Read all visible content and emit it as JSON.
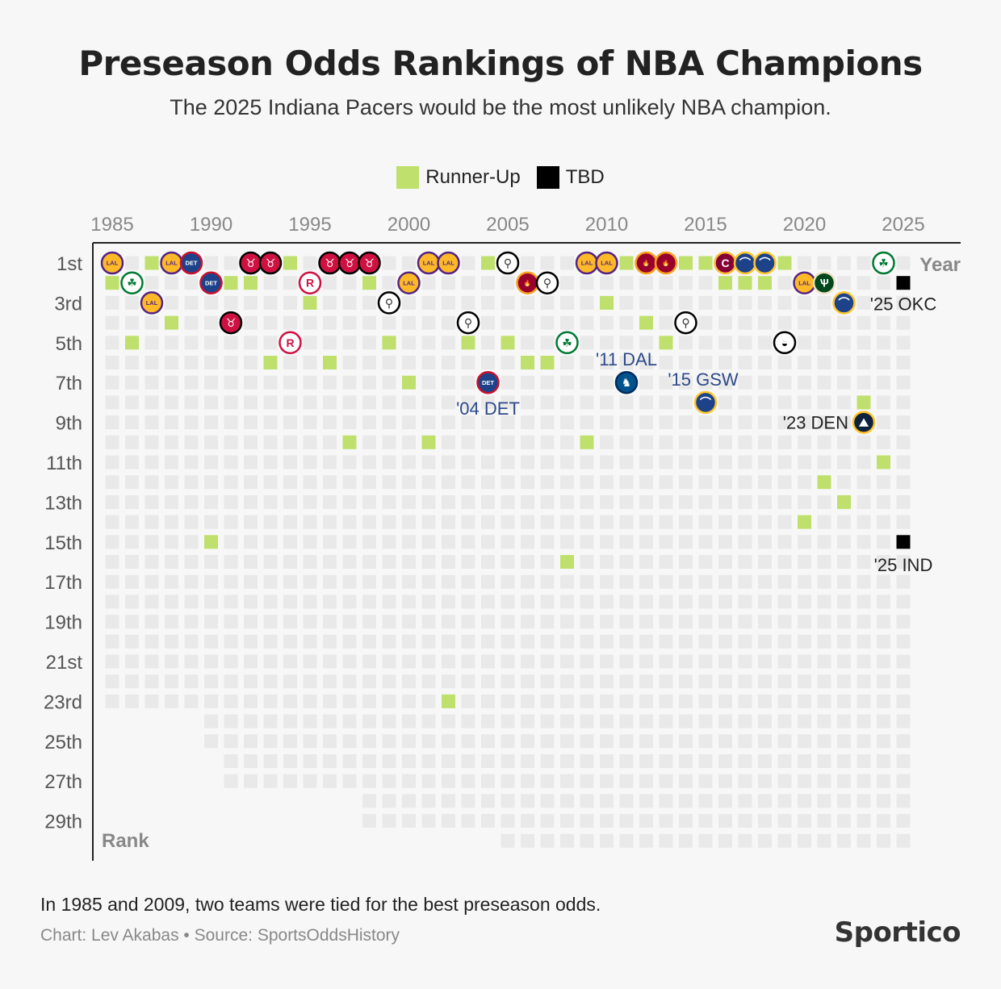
{
  "title": "Preseason Odds Rankings of NBA Champions",
  "subtitle": "The 2025 Indiana Pacers would be the most unlikely NBA champion.",
  "legend": {
    "runner_up": "Runner-Up",
    "tbd": "TBD"
  },
  "footnote": "In 1985 and 2009, two teams were tied for the best preseason odds.",
  "credit": "Chart: Lev Akabas • Source: SportsOddsHistory",
  "brand": "Sportico",
  "colors": {
    "runner_up": "#bfe06c",
    "tbd": "#000000",
    "empty_cell": "#e9e9e9",
    "annotation": "#2e4a8a"
  },
  "chart_data": {
    "type": "scatter",
    "xlabel": "Year",
    "ylabel": "Rank",
    "x_ticks": [
      1985,
      1990,
      1995,
      2000,
      2005,
      2010,
      2015,
      2020,
      2025
    ],
    "y_ticks": [
      "1st",
      "3rd",
      "5th",
      "7th",
      "9th",
      "11th",
      "13th",
      "15th",
      "17th",
      "19th",
      "21st",
      "23rd",
      "25th",
      "27th",
      "29th"
    ],
    "years": [
      1985,
      2025
    ],
    "ranks_shown_per_year": [
      23,
      23,
      23,
      23,
      23,
      25,
      27,
      27,
      27,
      27,
      27,
      27,
      27,
      29,
      29,
      29,
      29,
      29,
      29,
      29,
      30,
      30,
      30,
      30,
      30,
      30,
      30,
      30,
      30,
      30,
      30,
      30,
      30,
      30,
      30,
      30,
      30,
      30,
      30,
      30,
      30
    ],
    "champions": [
      {
        "year": 1985,
        "rank": 1,
        "team": "lakers"
      },
      {
        "year": 1986,
        "rank": 2,
        "team": "celtics"
      },
      {
        "year": 1987,
        "rank": 3,
        "team": "lakers"
      },
      {
        "year": 1988,
        "rank": 1,
        "team": "lakers"
      },
      {
        "year": 1989,
        "rank": 1,
        "team": "pistons"
      },
      {
        "year": 1990,
        "rank": 2,
        "team": "pistons"
      },
      {
        "year": 1991,
        "rank": 4,
        "team": "bulls"
      },
      {
        "year": 1992,
        "rank": 1,
        "team": "bulls"
      },
      {
        "year": 1993,
        "rank": 1,
        "team": "bulls"
      },
      {
        "year": 1994,
        "rank": 5,
        "team": "rockets"
      },
      {
        "year": 1995,
        "rank": 2,
        "team": "rockets"
      },
      {
        "year": 1996,
        "rank": 1,
        "team": "bulls"
      },
      {
        "year": 1997,
        "rank": 1,
        "team": "bulls"
      },
      {
        "year": 1998,
        "rank": 1,
        "team": "bulls"
      },
      {
        "year": 1999,
        "rank": 3,
        "team": "spurs"
      },
      {
        "year": 2000,
        "rank": 2,
        "team": "lakers"
      },
      {
        "year": 2001,
        "rank": 1,
        "team": "lakers"
      },
      {
        "year": 2002,
        "rank": 1,
        "team": "lakers"
      },
      {
        "year": 2003,
        "rank": 4,
        "team": "spurs"
      },
      {
        "year": 2004,
        "rank": 7,
        "team": "pistons"
      },
      {
        "year": 2005,
        "rank": 1,
        "team": "spurs"
      },
      {
        "year": 2006,
        "rank": 2,
        "team": "heat"
      },
      {
        "year": 2007,
        "rank": 2,
        "team": "spurs"
      },
      {
        "year": 2008,
        "rank": 5,
        "team": "celtics"
      },
      {
        "year": 2009,
        "rank": 1,
        "team": "lakers"
      },
      {
        "year": 2010,
        "rank": 1,
        "team": "lakers"
      },
      {
        "year": 2011,
        "rank": 7,
        "team": "mavericks"
      },
      {
        "year": 2012,
        "rank": 1,
        "team": "heat"
      },
      {
        "year": 2013,
        "rank": 1,
        "team": "heat"
      },
      {
        "year": 2014,
        "rank": 4,
        "team": "spurs"
      },
      {
        "year": 2015,
        "rank": 8,
        "team": "warriors"
      },
      {
        "year": 2016,
        "rank": 1,
        "team": "cavaliers"
      },
      {
        "year": 2017,
        "rank": 1,
        "team": "warriors"
      },
      {
        "year": 2018,
        "rank": 1,
        "team": "warriors"
      },
      {
        "year": 2019,
        "rank": 5,
        "team": "raptors"
      },
      {
        "year": 2020,
        "rank": 2,
        "team": "lakers"
      },
      {
        "year": 2021,
        "rank": 2,
        "team": "bucks"
      },
      {
        "year": 2022,
        "rank": 3,
        "team": "warriors"
      },
      {
        "year": 2023,
        "rank": 9,
        "team": "nuggets"
      },
      {
        "year": 2024,
        "rank": 1,
        "team": "celtics"
      }
    ],
    "runner_ups": [
      {
        "year": 1985,
        "rank": 2
      },
      {
        "year": 1986,
        "rank": 5
      },
      {
        "year": 1987,
        "rank": 1
      },
      {
        "year": 1988,
        "rank": 4
      },
      {
        "year": 1989,
        "rank": 1
      },
      {
        "year": 1990,
        "rank": 15
      },
      {
        "year": 1991,
        "rank": 2
      },
      {
        "year": 1992,
        "rank": 2
      },
      {
        "year": 1993,
        "rank": 6
      },
      {
        "year": 1994,
        "rank": 1
      },
      {
        "year": 1995,
        "rank": 3
      },
      {
        "year": 1996,
        "rank": 6
      },
      {
        "year": 1997,
        "rank": 10
      },
      {
        "year": 1998,
        "rank": 2
      },
      {
        "year": 1999,
        "rank": 5
      },
      {
        "year": 2000,
        "rank": 7
      },
      {
        "year": 2001,
        "rank": 10
      },
      {
        "year": 2002,
        "rank": 23
      },
      {
        "year": 2003,
        "rank": 5
      },
      {
        "year": 2004,
        "rank": 1
      },
      {
        "year": 2005,
        "rank": 5
      },
      {
        "year": 2006,
        "rank": 6
      },
      {
        "year": 2007,
        "rank": 6
      },
      {
        "year": 2008,
        "rank": 16
      },
      {
        "year": 2009,
        "rank": 10
      },
      {
        "year": 2010,
        "rank": 3
      },
      {
        "year": 2011,
        "rank": 1
      },
      {
        "year": 2012,
        "rank": 4
      },
      {
        "year": 2013,
        "rank": 5
      },
      {
        "year": 2014,
        "rank": 1
      },
      {
        "year": 2015,
        "rank": 1
      },
      {
        "year": 2016,
        "rank": 2
      },
      {
        "year": 2017,
        "rank": 2
      },
      {
        "year": 2018,
        "rank": 2
      },
      {
        "year": 2019,
        "rank": 1
      },
      {
        "year": 2020,
        "rank": 14
      },
      {
        "year": 2021,
        "rank": 12
      },
      {
        "year": 2022,
        "rank": 13
      },
      {
        "year": 2023,
        "rank": 8
      },
      {
        "year": 2024,
        "rank": 11
      }
    ],
    "tbd": [
      {
        "year": 2025,
        "rank": 2
      },
      {
        "year": 2025,
        "rank": 15
      }
    ],
    "annotations": [
      {
        "label": "'04 DET",
        "year": 2004,
        "rank": 7
      },
      {
        "label": "'11 DAL",
        "year": 2011,
        "rank": 7
      },
      {
        "label": "'15 GSW",
        "year": 2015,
        "rank": 8
      },
      {
        "label": "'23 DEN",
        "year": 2023,
        "rank": 9
      },
      {
        "label": "'25 OKC",
        "year": 2025,
        "rank": 2
      },
      {
        "label": "'25 IND",
        "year": 2025,
        "rank": 15
      }
    ]
  }
}
